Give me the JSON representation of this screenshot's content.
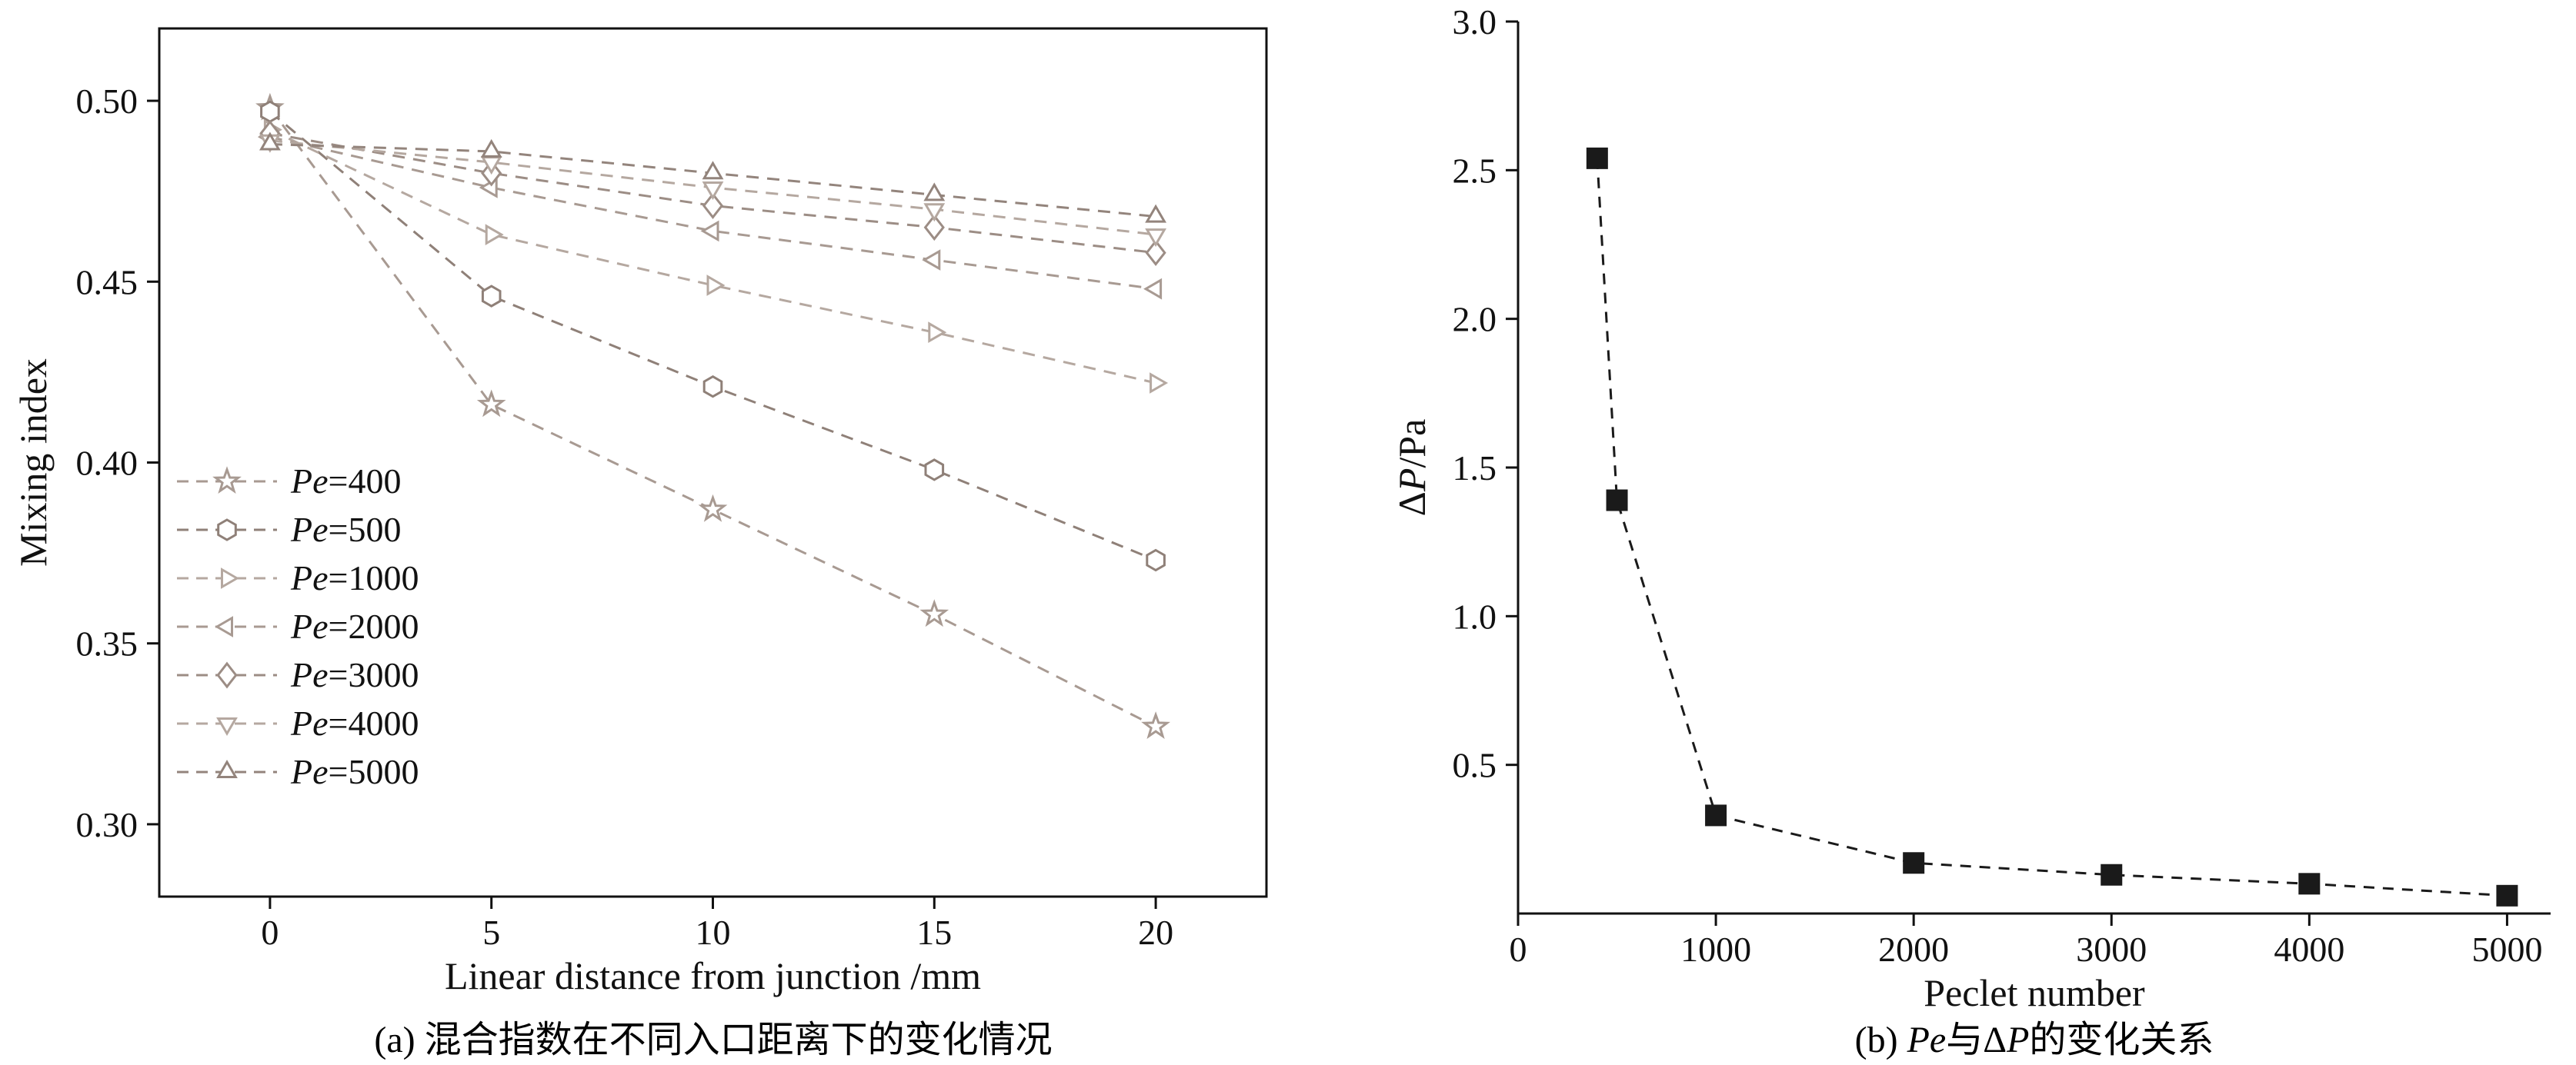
{
  "figure": {
    "background": "#ffffff",
    "axis_color": "#111111"
  },
  "chart_data": [
    {
      "id": "mixing-index-vs-distance",
      "type": "line",
      "title": "",
      "xlabel": "Linear distance from junction /mm",
      "ylabel": "Mixing index",
      "caption": "(a) 混合指数在不同入口距离下的变化情况",
      "xlim": [
        -2.5,
        22.5
      ],
      "ylim": [
        0.28,
        0.52
      ],
      "xticks": [
        0,
        5,
        10,
        15,
        20
      ],
      "xtick_labels": [
        "0",
        "5",
        "10",
        "15",
        "20"
      ],
      "yticks": [
        0.3,
        0.35,
        0.4,
        0.45,
        0.5
      ],
      "ytick_labels": [
        "0.30",
        "0.35",
        "0.40",
        "0.45",
        "0.50"
      ],
      "frame": "box",
      "grid": false,
      "line_style": "dashed",
      "marker_fill": "open",
      "legend": {
        "visible": true,
        "position": "lower-left"
      },
      "x": [
        0,
        5,
        10,
        15,
        20
      ],
      "series": [
        {
          "name": "Pe=400",
          "marker": "star",
          "color": "#a89a92",
          "values": [
            0.498,
            0.416,
            0.387,
            0.358,
            0.327
          ]
        },
        {
          "name": "Pe=500",
          "marker": "hexagon",
          "color": "#8f8078",
          "values": [
            0.497,
            0.446,
            0.421,
            0.398,
            0.373
          ]
        },
        {
          "name": "Pe=1000",
          "marker": "triangle-right",
          "color": "#b5a8a0",
          "values": [
            0.492,
            0.463,
            0.449,
            0.436,
            0.422
          ]
        },
        {
          "name": "Pe=2000",
          "marker": "triangle-left",
          "color": "#a89a92",
          "values": [
            0.49,
            0.476,
            0.464,
            0.456,
            0.448
          ]
        },
        {
          "name": "Pe=3000",
          "marker": "diamond",
          "color": "#9c8d85",
          "values": [
            0.491,
            0.48,
            0.471,
            0.465,
            0.458
          ]
        },
        {
          "name": "Pe=4000",
          "marker": "triangle-down",
          "color": "#b5a8a0",
          "values": [
            0.489,
            0.483,
            0.476,
            0.47,
            0.463
          ]
        },
        {
          "name": "Pe=5000",
          "marker": "triangle-up",
          "color": "#93847c",
          "values": [
            0.488,
            0.486,
            0.48,
            0.474,
            0.468
          ]
        }
      ]
    },
    {
      "id": "pressure-drop-vs-peclet",
      "type": "line",
      "title": "",
      "xlabel": "Peclet number",
      "ylabel": "ΔP/Pa",
      "ylabel_parts": [
        {
          "text": "Δ",
          "italic": false
        },
        {
          "text": "P",
          "italic": true
        },
        {
          "text": "/Pa",
          "italic": false
        }
      ],
      "caption": "(b) Pe与ΔP的变化关系",
      "caption_parts": [
        {
          "text": "(b) ",
          "italic": false
        },
        {
          "text": "Pe",
          "italic": true
        },
        {
          "text": "与Δ",
          "italic": false
        },
        {
          "text": "P",
          "italic": true
        },
        {
          "text": "的变化关系",
          "italic": false
        }
      ],
      "xlim": [
        0,
        5220
      ],
      "ylim": [
        0,
        3.0
      ],
      "xticks": [
        0,
        1000,
        2000,
        3000,
        4000,
        5000
      ],
      "xtick_labels": [
        "0",
        "1000",
        "2000",
        "3000",
        "4000",
        "5000"
      ],
      "yticks": [
        0.5,
        1.0,
        1.5,
        2.0,
        2.5,
        3.0
      ],
      "ytick_labels": [
        "0.5",
        "1.0",
        "1.5",
        "2.0",
        "2.5",
        "3.0"
      ],
      "frame": "axes",
      "grid": false,
      "line_style": "dashed",
      "marker_fill": "filled",
      "legend": {
        "visible": false
      },
      "series": [
        {
          "name": "ΔP",
          "marker": "square-filled",
          "color": "#1a1a1a",
          "x": [
            400,
            500,
            1000,
            2000,
            3000,
            4000,
            5000
          ],
          "values": [
            2.54,
            1.39,
            0.33,
            0.17,
            0.13,
            0.1,
            0.06
          ]
        }
      ]
    }
  ]
}
